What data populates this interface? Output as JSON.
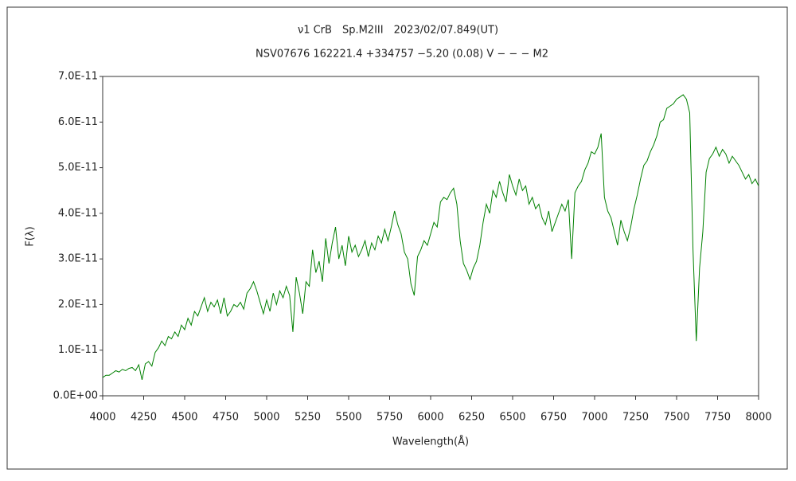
{
  "chart_data": {
    "type": "line",
    "title": "ν1 CrB　Sp.M2III　2023/02/07.849(UT)",
    "subtitle": "NSV07676 162221.4 +334757 −5.20 (0.08) V − − − M2",
    "x_label": "Wavelength(Å)",
    "y_label": "F(λ)",
    "color": "#008000",
    "grid": false,
    "xlim": [
      4000,
      8000
    ],
    "xticks": [
      4000,
      4250,
      4500,
      4750,
      5000,
      5250,
      5500,
      5750,
      6000,
      6250,
      6500,
      6750,
      7000,
      7250,
      7500,
      7750,
      8000
    ],
    "ylim": [
      0,
      7e-11
    ],
    "yticks": [
      {
        "value": 0,
        "label": "0.0E+00"
      },
      {
        "value": 1e-11,
        "label": "1.0E-11"
      },
      {
        "value": 2e-11,
        "label": "2.0E-11"
      },
      {
        "value": 3e-11,
        "label": "3.0E-11"
      },
      {
        "value": 4e-11,
        "label": "4.0E-11"
      },
      {
        "value": 5e-11,
        "label": "5.0E-11"
      },
      {
        "value": 6e-11,
        "label": "6.0E-11"
      },
      {
        "value": 7e-11,
        "label": "7.0E-11"
      }
    ],
    "x": [
      4000,
      4020,
      4040,
      4060,
      4080,
      4100,
      4120,
      4140,
      4160,
      4180,
      4200,
      4220,
      4240,
      4260,
      4280,
      4300,
      4320,
      4340,
      4360,
      4380,
      4400,
      4420,
      4440,
      4460,
      4480,
      4500,
      4520,
      4540,
      4560,
      4580,
      4600,
      4620,
      4640,
      4660,
      4680,
      4700,
      4720,
      4740,
      4760,
      4780,
      4800,
      4820,
      4840,
      4860,
      4880,
      4900,
      4920,
      4940,
      4960,
      4980,
      5000,
      5020,
      5040,
      5060,
      5080,
      5100,
      5120,
      5140,
      5160,
      5180,
      5200,
      5220,
      5240,
      5260,
      5280,
      5300,
      5320,
      5340,
      5360,
      5380,
      5400,
      5420,
      5440,
      5460,
      5480,
      5500,
      5520,
      5540,
      5560,
      5580,
      5600,
      5620,
      5640,
      5660,
      5680,
      5700,
      5720,
      5740,
      5760,
      5780,
      5800,
      5820,
      5840,
      5860,
      5880,
      5900,
      5920,
      5940,
      5960,
      5980,
      6000,
      6020,
      6040,
      6060,
      6080,
      6100,
      6120,
      6140,
      6160,
      6180,
      6200,
      6220,
      6240,
      6260,
      6280,
      6300,
      6320,
      6340,
      6360,
      6380,
      6400,
      6420,
      6440,
      6460,
      6480,
      6500,
      6520,
      6540,
      6560,
      6580,
      6600,
      6620,
      6640,
      6660,
      6680,
      6700,
      6720,
      6740,
      6760,
      6780,
      6800,
      6820,
      6840,
      6860,
      6880,
      6900,
      6920,
      6940,
      6960,
      6980,
      7000,
      7020,
      7040,
      7060,
      7080,
      7100,
      7120,
      7140,
      7160,
      7180,
      7200,
      7220,
      7240,
      7260,
      7280,
      7300,
      7320,
      7340,
      7360,
      7380,
      7400,
      7420,
      7440,
      7460,
      7480,
      7500,
      7520,
      7540,
      7560,
      7580,
      7600,
      7620,
      7640,
      7660,
      7680,
      7700,
      7720,
      7740,
      7760,
      7780,
      7800,
      7820,
      7840,
      7860,
      7880,
      7900,
      7920,
      7940,
      7960,
      7980,
      8000
    ],
    "values": [
      4e-12,
      4.5e-12,
      4.5e-12,
      5e-12,
      5.5e-12,
      5.2e-12,
      5.8e-12,
      5.5e-12,
      6e-12,
      6.2e-12,
      5.5e-12,
      6.8e-12,
      3.5e-12,
      7e-12,
      7.5e-12,
      6.5e-12,
      9.5e-12,
      1.05e-11,
      1.2e-11,
      1.1e-11,
      1.3e-11,
      1.25e-11,
      1.4e-11,
      1.3e-11,
      1.55e-11,
      1.45e-11,
      1.7e-11,
      1.55e-11,
      1.85e-11,
      1.75e-11,
      1.95e-11,
      2.15e-11,
      1.85e-11,
      2.05e-11,
      1.95e-11,
      2.1e-11,
      1.8e-11,
      2.15e-11,
      1.75e-11,
      1.85e-11,
      2e-11,
      1.95e-11,
      2.05e-11,
      1.9e-11,
      2.25e-11,
      2.35e-11,
      2.5e-11,
      2.3e-11,
      2.05e-11,
      1.8e-11,
      2.1e-11,
      1.85e-11,
      2.25e-11,
      2e-11,
      2.3e-11,
      2.15e-11,
      2.4e-11,
      2.2e-11,
      1.4e-11,
      2.6e-11,
      2.25e-11,
      1.8e-11,
      2.5e-11,
      2.4e-11,
      3.2e-11,
      2.7e-11,
      2.95e-11,
      2.5e-11,
      3.45e-11,
      2.9e-11,
      3.35e-11,
      3.7e-11,
      3e-11,
      3.3e-11,
      2.85e-11,
      3.5e-11,
      3.15e-11,
      3.3e-11,
      3.05e-11,
      3.2e-11,
      3.4e-11,
      3.05e-11,
      3.35e-11,
      3.2e-11,
      3.5e-11,
      3.35e-11,
      3.65e-11,
      3.4e-11,
      3.7e-11,
      4.05e-11,
      3.75e-11,
      3.55e-11,
      3.15e-11,
      3e-11,
      2.45e-11,
      2.2e-11,
      3.05e-11,
      3.2e-11,
      3.4e-11,
      3.3e-11,
      3.55e-11,
      3.8e-11,
      3.7e-11,
      4.25e-11,
      4.35e-11,
      4.3e-11,
      4.45e-11,
      4.55e-11,
      4.2e-11,
      3.4e-11,
      2.9e-11,
      2.75e-11,
      2.55e-11,
      2.8e-11,
      2.95e-11,
      3.3e-11,
      3.8e-11,
      4.2e-11,
      4e-11,
      4.5e-11,
      4.35e-11,
      4.7e-11,
      4.45e-11,
      4.25e-11,
      4.85e-11,
      4.6e-11,
      4.4e-11,
      4.75e-11,
      4.5e-11,
      4.6e-11,
      4.2e-11,
      4.35e-11,
      4.1e-11,
      4.2e-11,
      3.9e-11,
      3.75e-11,
      4.05e-11,
      3.6e-11,
      3.8e-11,
      4e-11,
      4.2e-11,
      4.05e-11,
      4.3e-11,
      3e-11,
      4.45e-11,
      4.6e-11,
      4.7e-11,
      4.95e-11,
      5.1e-11,
      5.35e-11,
      5.3e-11,
      5.45e-11,
      5.75e-11,
      4.35e-11,
      4.05e-11,
      3.9e-11,
      3.6e-11,
      3.3e-11,
      3.85e-11,
      3.6e-11,
      3.4e-11,
      3.7e-11,
      4.1e-11,
      4.4e-11,
      4.75e-11,
      5.05e-11,
      5.15e-11,
      5.35e-11,
      5.5e-11,
      5.7e-11,
      6e-11,
      6.05e-11,
      6.3e-11,
      6.35e-11,
      6.4e-11,
      6.5e-11,
      6.55e-11,
      6.6e-11,
      6.5e-11,
      6.2e-11,
      3.2e-11,
      1.2e-11,
      2.8e-11,
      3.6e-11,
      4.9e-11,
      5.2e-11,
      5.3e-11,
      5.45e-11,
      5.25e-11,
      5.4e-11,
      5.3e-11,
      5.1e-11,
      5.25e-11,
      5.15e-11,
      5.05e-11,
      4.9e-11,
      4.75e-11,
      4.85e-11,
      4.65e-11,
      4.75e-11,
      4.6e-11
    ]
  }
}
